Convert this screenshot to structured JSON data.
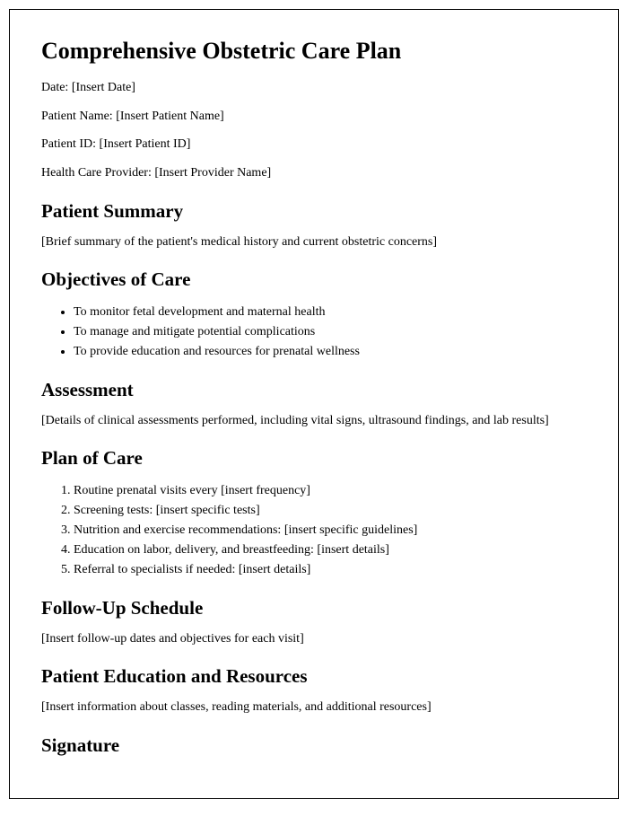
{
  "title": "Comprehensive Obstetric Care Plan",
  "meta": {
    "date_label": "Date: ",
    "date_value": "[Insert Date]",
    "patient_name_label": "Patient Name: ",
    "patient_name_value": "[Insert Patient Name]",
    "patient_id_label": "Patient ID: ",
    "patient_id_value": "[Insert Patient ID]",
    "provider_label": "Health Care Provider: ",
    "provider_value": "[Insert Provider Name]"
  },
  "sections": {
    "patient_summary": {
      "heading": "Patient Summary",
      "text": "[Brief summary of the patient's medical history and current obstetric concerns]"
    },
    "objectives": {
      "heading": "Objectives of Care",
      "items": [
        "To monitor fetal development and maternal health",
        "To manage and mitigate potential complications",
        "To provide education and resources for prenatal wellness"
      ]
    },
    "assessment": {
      "heading": "Assessment",
      "text": "[Details of clinical assessments performed, including vital signs, ultrasound findings, and lab results]"
    },
    "plan_of_care": {
      "heading": "Plan of Care",
      "items": [
        "Routine prenatal visits every [insert frequency]",
        "Screening tests: [insert specific tests]",
        "Nutrition and exercise recommendations: [insert specific guidelines]",
        "Education on labor, delivery, and breastfeeding: [insert details]",
        "Referral to specialists if needed: [insert details]"
      ]
    },
    "follow_up": {
      "heading": "Follow-Up Schedule",
      "text": "[Insert follow-up dates and objectives for each visit]"
    },
    "education": {
      "heading": "Patient Education and Resources",
      "text": "[Insert information about classes, reading materials, and additional resources]"
    },
    "signature": {
      "heading": "Signature"
    }
  }
}
